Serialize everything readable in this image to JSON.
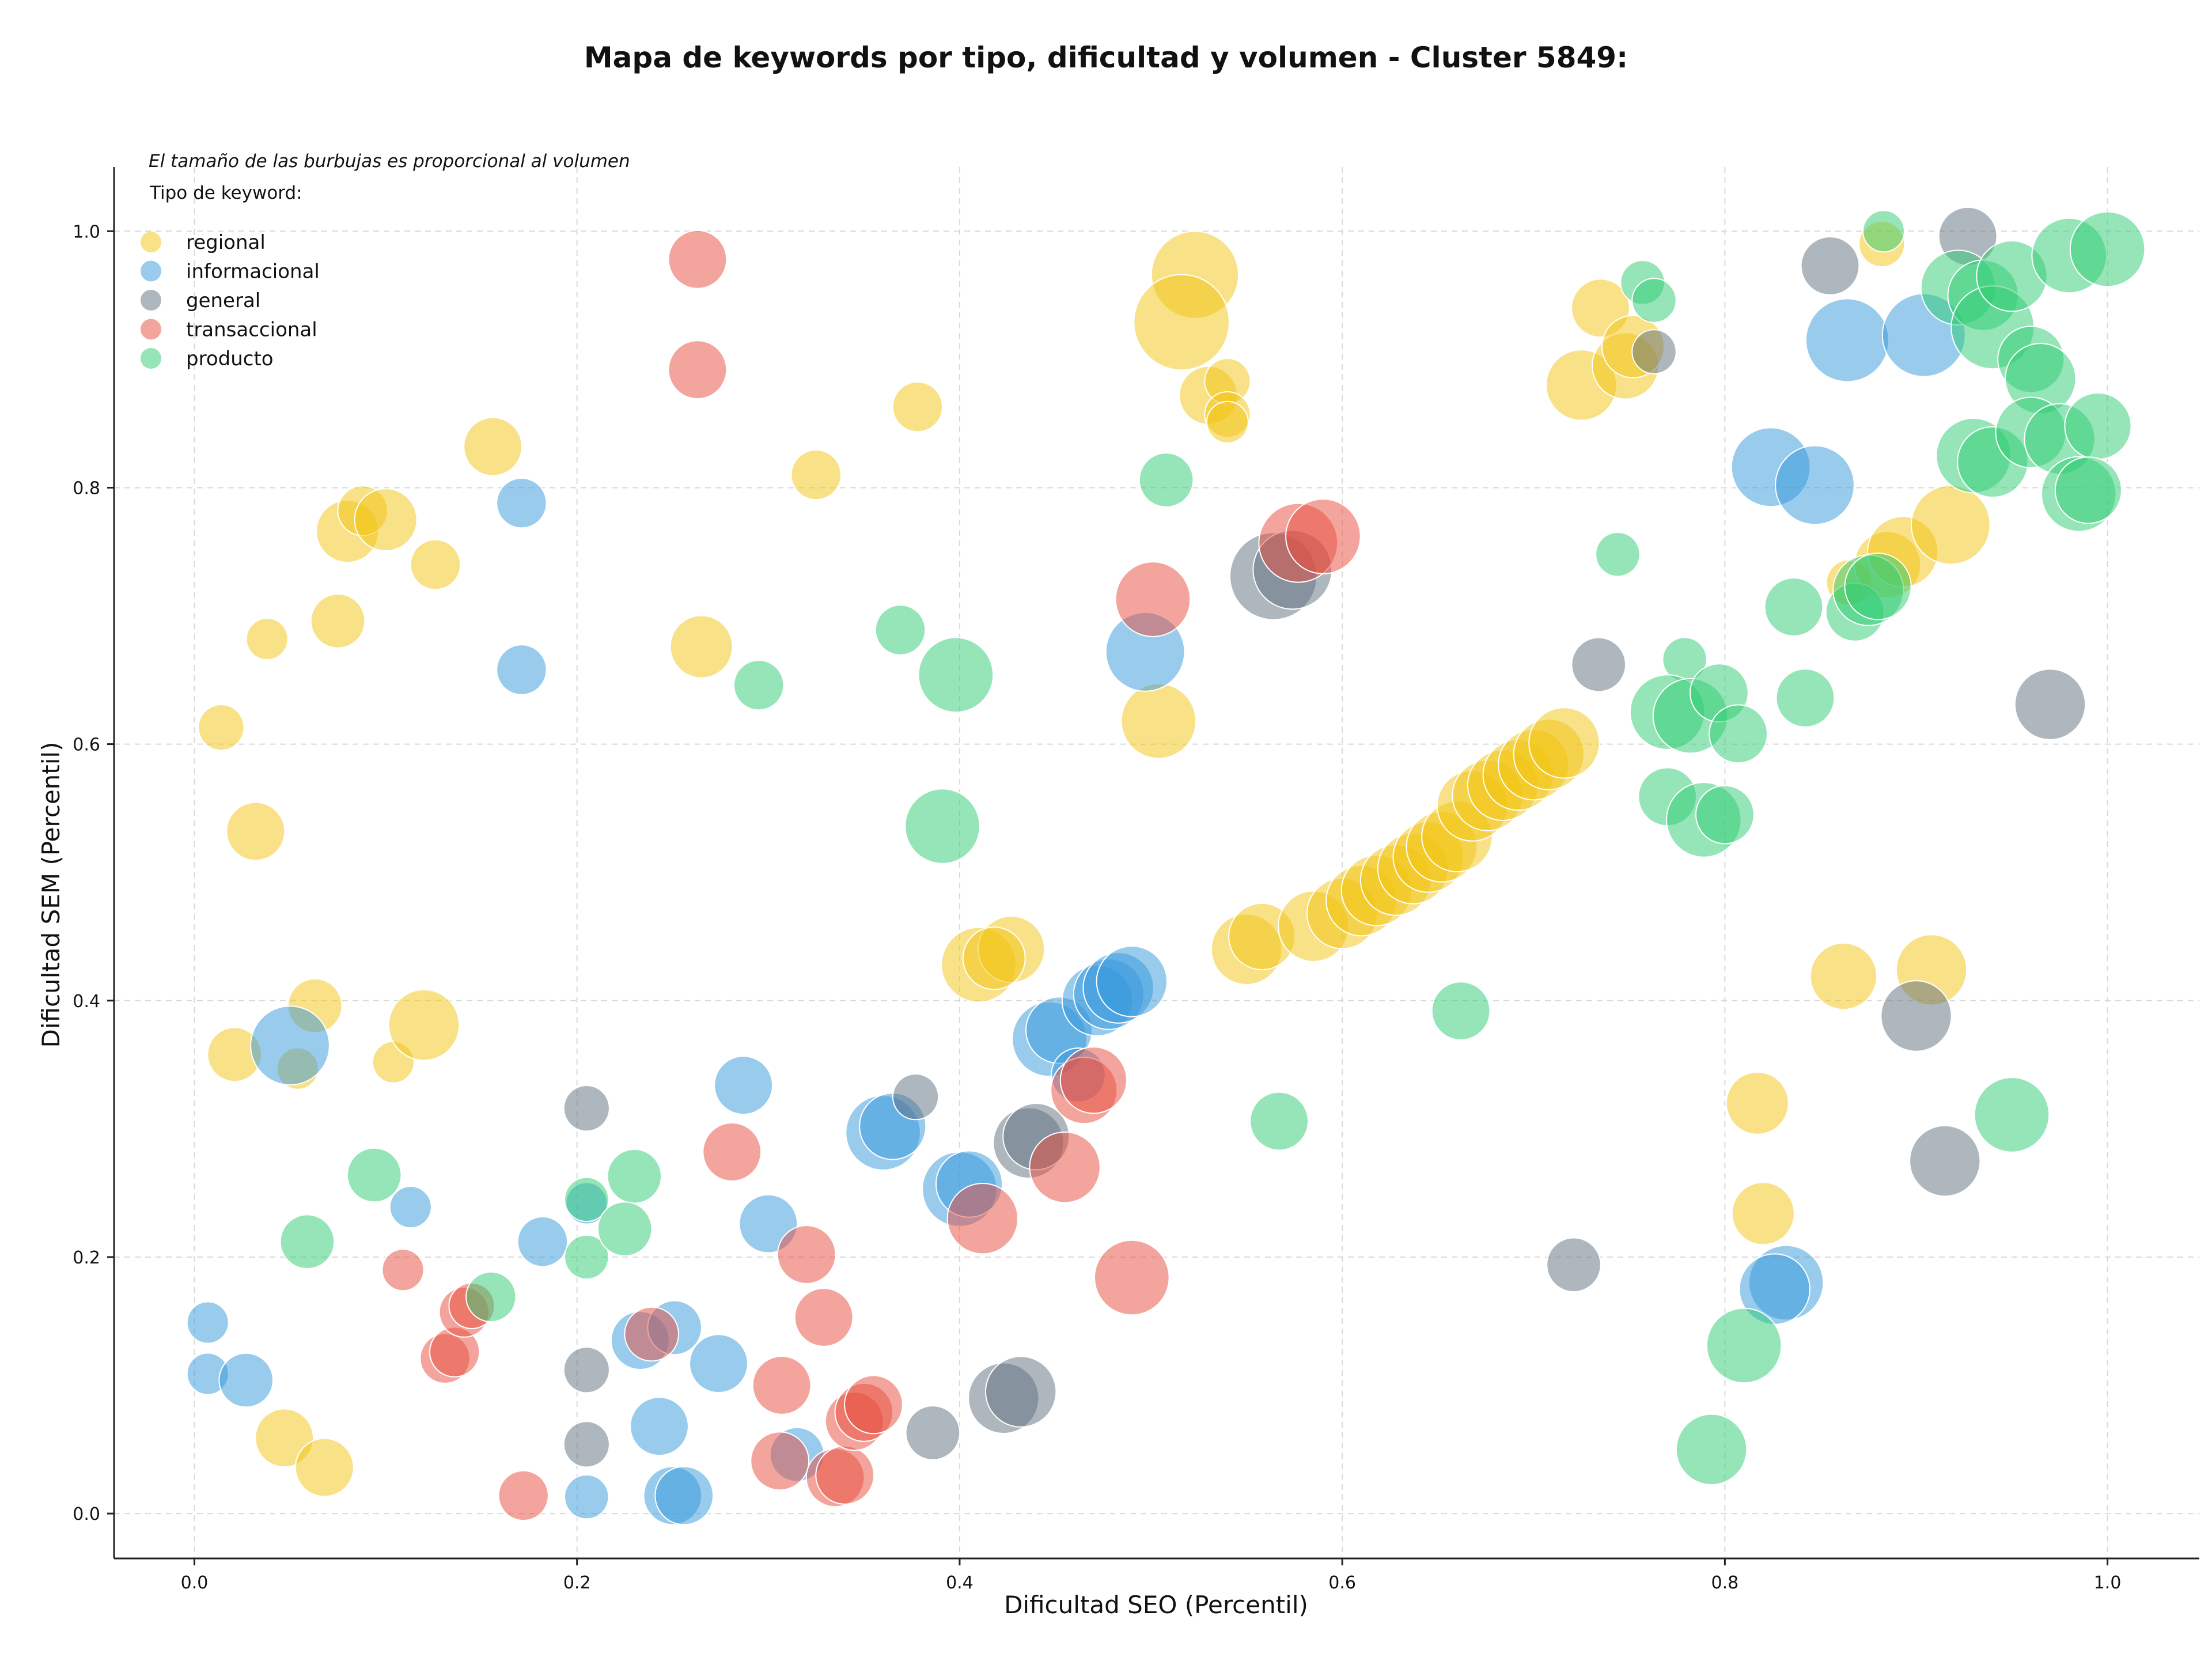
{
  "chart_data": {
    "type": "scatter",
    "title": "Mapa de keywords por tipo, dificultad y volumen - Cluster 5849:",
    "xlabel": "Dificultad SEO (Percentil)",
    "ylabel": "Dificultad SEM (Percentil)",
    "xlim": [
      -0.042,
      1.048
    ],
    "ylim": [
      -0.035,
      1.05
    ],
    "xticks": [
      0.0,
      0.2,
      0.4,
      0.6,
      0.8,
      1.0
    ],
    "yticks": [
      0.0,
      0.2,
      0.4,
      0.6,
      0.8,
      1.0
    ],
    "xtick_labels": [
      "0.0",
      "0.2",
      "0.4",
      "0.6",
      "0.8",
      "1.0"
    ],
    "ytick_labels": [
      "0.0",
      "0.2",
      "0.4",
      "0.6",
      "0.8",
      "1.0"
    ],
    "grid": true,
    "note": "El tamaño de las burbujas es proporcional al volumen",
    "legend_title": "Tipo de keyword:",
    "legend_position": "top-left",
    "series": [
      {
        "name": "regional",
        "color": "#f1c40f",
        "points": [
          [
            0.014,
            0.613,
            0.3
          ],
          [
            0.032,
            0.532,
            0.45
          ],
          [
            0.038,
            0.682,
            0.25
          ],
          [
            0.063,
            0.396,
            0.4
          ],
          [
            0.021,
            0.358,
            0.4
          ],
          [
            0.054,
            0.347,
            0.25
          ],
          [
            0.047,
            0.059,
            0.45
          ],
          [
            0.068,
            0.036,
            0.45
          ],
          [
            0.08,
            0.766,
            0.5
          ],
          [
            0.088,
            0.782,
            0.35
          ],
          [
            0.1,
            0.775,
            0.5
          ],
          [
            0.075,
            0.696,
            0.4
          ],
          [
            0.126,
            0.74,
            0.35
          ],
          [
            0.156,
            0.832,
            0.45
          ],
          [
            0.104,
            0.352,
            0.25
          ],
          [
            0.12,
            0.381,
            0.6
          ],
          [
            0.265,
            0.676,
            0.5
          ],
          [
            0.325,
            0.81,
            0.35
          ],
          [
            0.378,
            0.863,
            0.35
          ],
          [
            0.523,
            0.966,
            0.8
          ],
          [
            0.516,
            0.929,
            0.9
          ],
          [
            0.53,
            0.872,
            0.45
          ],
          [
            0.54,
            0.883,
            0.3
          ],
          [
            0.54,
            0.857,
            0.3
          ],
          [
            0.54,
            0.851,
            0.25
          ],
          [
            0.504,
            0.618,
            0.65
          ],
          [
            0.41,
            0.428,
            0.65
          ],
          [
            0.427,
            0.44,
            0.55
          ],
          [
            0.418,
            0.433,
            0.5
          ],
          [
            0.55,
            0.44,
            0.6
          ],
          [
            0.558,
            0.45,
            0.55
          ],
          [
            0.585,
            0.458,
            0.6
          ],
          [
            0.6,
            0.468,
            0.6
          ],
          [
            0.61,
            0.478,
            0.6
          ],
          [
            0.618,
            0.486,
            0.6
          ],
          [
            0.628,
            0.494,
            0.6
          ],
          [
            0.637,
            0.503,
            0.6
          ],
          [
            0.645,
            0.512,
            0.6
          ],
          [
            0.652,
            0.52,
            0.6
          ],
          [
            0.66,
            0.528,
            0.6
          ],
          [
            0.668,
            0.552,
            0.6
          ],
          [
            0.676,
            0.56,
            0.6
          ],
          [
            0.684,
            0.568,
            0.6
          ],
          [
            0.692,
            0.576,
            0.6
          ],
          [
            0.7,
            0.584,
            0.6
          ],
          [
            0.708,
            0.592,
            0.6
          ],
          [
            0.716,
            0.601,
            0.6
          ],
          [
            0.725,
            0.88,
            0.6
          ],
          [
            0.735,
            0.94,
            0.45
          ],
          [
            0.748,
            0.895,
            0.55
          ],
          [
            0.752,
            0.91,
            0.5
          ],
          [
            0.862,
            0.419,
            0.55
          ],
          [
            0.908,
            0.424,
            0.6
          ],
          [
            0.817,
            0.32,
            0.5
          ],
          [
            0.82,
            0.234,
            0.5
          ],
          [
            0.882,
            0.99,
            0.3
          ],
          [
            0.865,
            0.726,
            0.3
          ],
          [
            0.885,
            0.74,
            0.55
          ],
          [
            0.893,
            0.75,
            0.6
          ],
          [
            0.918,
            0.771,
            0.7
          ]
        ]
      },
      {
        "name": "informacional",
        "color": "#3498db",
        "points": [
          [
            0.171,
            0.788,
            0.35
          ],
          [
            0.171,
            0.658,
            0.35
          ],
          [
            0.05,
            0.365,
            0.7
          ],
          [
            0.007,
            0.149,
            0.25
          ],
          [
            0.007,
            0.109,
            0.25
          ],
          [
            0.027,
            0.104,
            0.4
          ],
          [
            0.113,
            0.239,
            0.25
          ],
          [
            0.182,
            0.212,
            0.35
          ],
          [
            0.205,
            0.242,
            0.25
          ],
          [
            0.205,
            0.013,
            0.28
          ],
          [
            0.287,
            0.334,
            0.45
          ],
          [
            0.3,
            0.226,
            0.45
          ],
          [
            0.274,
            0.117,
            0.45
          ],
          [
            0.233,
            0.135,
            0.45
          ],
          [
            0.251,
            0.145,
            0.4
          ],
          [
            0.243,
            0.068,
            0.45
          ],
          [
            0.25,
            0.014,
            0.45
          ],
          [
            0.256,
            0.014,
            0.45
          ],
          [
            0.315,
            0.046,
            0.4
          ],
          [
            0.36,
            0.297,
            0.65
          ],
          [
            0.365,
            0.302,
            0.55
          ],
          [
            0.4,
            0.253,
            0.65
          ],
          [
            0.405,
            0.257,
            0.55
          ],
          [
            0.447,
            0.37,
            0.65
          ],
          [
            0.452,
            0.377,
            0.55
          ],
          [
            0.462,
            0.342,
            0.4
          ],
          [
            0.472,
            0.4,
            0.6
          ],
          [
            0.478,
            0.405,
            0.6
          ],
          [
            0.483,
            0.41,
            0.6
          ],
          [
            0.49,
            0.415,
            0.6
          ],
          [
            0.497,
            0.672,
            0.7
          ],
          [
            0.824,
            0.816,
            0.7
          ],
          [
            0.847,
            0.802,
            0.7
          ],
          [
            0.864,
            0.915,
            0.75
          ],
          [
            0.904,
            0.919,
            0.75
          ],
          [
            0.832,
            0.18,
            0.65
          ],
          [
            0.826,
            0.175,
            0.6
          ]
        ]
      },
      {
        "name": "general",
        "color": "#5d6d7e",
        "points": [
          [
            0.205,
            0.316,
            0.3
          ],
          [
            0.205,
            0.112,
            0.3
          ],
          [
            0.205,
            0.054,
            0.3
          ],
          [
            0.377,
            0.325,
            0.3
          ],
          [
            0.386,
            0.063,
            0.4
          ],
          [
            0.423,
            0.09,
            0.6
          ],
          [
            0.432,
            0.095,
            0.6
          ],
          [
            0.436,
            0.289,
            0.6
          ],
          [
            0.44,
            0.294,
            0.55
          ],
          [
            0.564,
            0.731,
            0.8
          ],
          [
            0.574,
            0.736,
            0.7
          ],
          [
            0.734,
            0.662,
            0.4
          ],
          [
            0.721,
            0.194,
            0.4
          ],
          [
            0.855,
            0.973,
            0.45
          ],
          [
            0.763,
            0.906,
            0.28
          ],
          [
            0.927,
            0.996,
            0.45
          ],
          [
            0.97,
            0.631,
            0.6
          ],
          [
            0.9,
            0.388,
            0.6
          ],
          [
            0.915,
            0.275,
            0.6
          ]
        ]
      },
      {
        "name": "transaccional",
        "color": "#e74c3c",
        "points": [
          [
            0.263,
            0.978,
            0.45
          ],
          [
            0.263,
            0.892,
            0.45
          ],
          [
            0.109,
            0.19,
            0.25
          ],
          [
            0.131,
            0.121,
            0.35
          ],
          [
            0.136,
            0.126,
            0.35
          ],
          [
            0.141,
            0.157,
            0.35
          ],
          [
            0.145,
            0.162,
            0.3
          ],
          [
            0.172,
            0.014,
            0.35
          ],
          [
            0.239,
            0.14,
            0.4
          ],
          [
            0.281,
            0.282,
            0.45
          ],
          [
            0.307,
            0.1,
            0.45
          ],
          [
            0.32,
            0.202,
            0.45
          ],
          [
            0.329,
            0.153,
            0.45
          ],
          [
            0.306,
            0.041,
            0.45
          ],
          [
            0.335,
            0.028,
            0.45
          ],
          [
            0.34,
            0.03,
            0.45
          ],
          [
            0.345,
            0.072,
            0.45
          ],
          [
            0.35,
            0.079,
            0.45
          ],
          [
            0.355,
            0.085,
            0.45
          ],
          [
            0.412,
            0.23,
            0.6
          ],
          [
            0.455,
            0.27,
            0.6
          ],
          [
            0.465,
            0.33,
            0.55
          ],
          [
            0.47,
            0.338,
            0.55
          ],
          [
            0.49,
            0.184,
            0.65
          ],
          [
            0.501,
            0.713,
            0.65
          ],
          [
            0.577,
            0.757,
            0.7
          ],
          [
            0.59,
            0.762,
            0.65
          ]
        ]
      },
      {
        "name": "producto",
        "color": "#2ecc71",
        "points": [
          [
            0.094,
            0.264,
            0.4
          ],
          [
            0.059,
            0.212,
            0.4
          ],
          [
            0.155,
            0.169,
            0.35
          ],
          [
            0.205,
            0.2,
            0.28
          ],
          [
            0.205,
            0.245,
            0.28
          ],
          [
            0.23,
            0.263,
            0.4
          ],
          [
            0.225,
            0.222,
            0.4
          ],
          [
            0.295,
            0.646,
            0.35
          ],
          [
            0.369,
            0.689,
            0.35
          ],
          [
            0.398,
            0.654,
            0.65
          ],
          [
            0.391,
            0.536,
            0.65
          ],
          [
            0.508,
            0.806,
            0.4
          ],
          [
            0.567,
            0.306,
            0.45
          ],
          [
            0.662,
            0.392,
            0.45
          ],
          [
            0.744,
            0.748,
            0.28
          ],
          [
            0.757,
            0.96,
            0.28
          ],
          [
            0.763,
            0.946,
            0.28
          ],
          [
            0.779,
            0.666,
            0.28
          ],
          [
            0.77,
            0.625,
            0.65
          ],
          [
            0.782,
            0.622,
            0.65
          ],
          [
            0.797,
            0.64,
            0.45
          ],
          [
            0.807,
            0.608,
            0.45
          ],
          [
            0.77,
            0.559,
            0.45
          ],
          [
            0.789,
            0.541,
            0.65
          ],
          [
            0.8,
            0.545,
            0.45
          ],
          [
            0.793,
            0.05,
            0.6
          ],
          [
            0.81,
            0.131,
            0.65
          ],
          [
            0.883,
            1.0,
            0.25
          ],
          [
            0.836,
            0.707,
            0.45
          ],
          [
            0.842,
            0.636,
            0.45
          ],
          [
            0.868,
            0.703,
            0.45
          ],
          [
            0.875,
            0.72,
            0.6
          ],
          [
            0.88,
            0.723,
            0.55
          ],
          [
            0.95,
            0.311,
            0.65
          ],
          [
            0.922,
            0.956,
            0.65
          ],
          [
            0.935,
            0.95,
            0.6
          ],
          [
            0.94,
            0.925,
            0.75
          ],
          [
            0.95,
            0.965,
            0.6
          ],
          [
            0.96,
            0.9,
            0.55
          ],
          [
            0.965,
            0.885,
            0.6
          ],
          [
            0.98,
            0.981,
            0.65
          ],
          [
            1.0,
            0.986,
            0.65
          ],
          [
            0.93,
            0.825,
            0.65
          ],
          [
            0.94,
            0.82,
            0.6
          ],
          [
            0.96,
            0.843,
            0.6
          ],
          [
            0.975,
            0.838,
            0.6
          ],
          [
            0.995,
            0.848,
            0.55
          ],
          [
            0.985,
            0.795,
            0.65
          ],
          [
            0.99,
            0.798,
            0.55
          ]
        ]
      }
    ]
  }
}
